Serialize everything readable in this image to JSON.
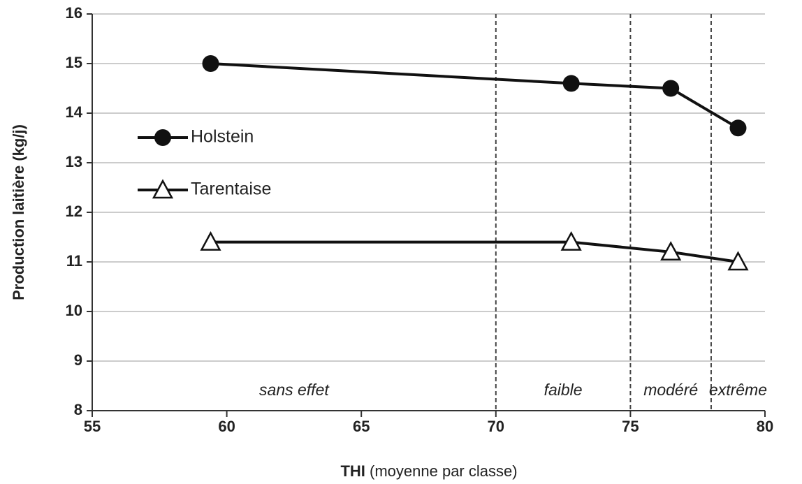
{
  "chart_data": {
    "type": "line",
    "xlabel_bold": "THI",
    "xlabel": "(moyenne par classe)",
    "ylabel": "Production laitière  (kg/j)",
    "xlim": [
      55,
      80
    ],
    "xticks": [
      55,
      60,
      65,
      70,
      75,
      80
    ],
    "ylim": [
      8,
      16
    ],
    "yticks": [
      8,
      9,
      10,
      11,
      12,
      13,
      14,
      15,
      16
    ],
    "grid": true,
    "legend": "center left",
    "thresholds": [
      70,
      75,
      78
    ],
    "zones": [
      "sans effet",
      "faible",
      "modéré",
      "extrême"
    ],
    "series": [
      {
        "name": "Holstein",
        "color": "#111111",
        "marker": "circle",
        "x": [
          59.4,
          72.8,
          76.5,
          79
        ],
        "values": [
          15.0,
          14.6,
          14.5,
          13.7
        ]
      },
      {
        "name": "Tarentaise",
        "color": "#111111",
        "marker": "triangle",
        "x": [
          59.4,
          72.8,
          76.5,
          79
        ],
        "values": [
          11.4,
          11.4,
          11.2,
          11.0
        ]
      }
    ]
  }
}
